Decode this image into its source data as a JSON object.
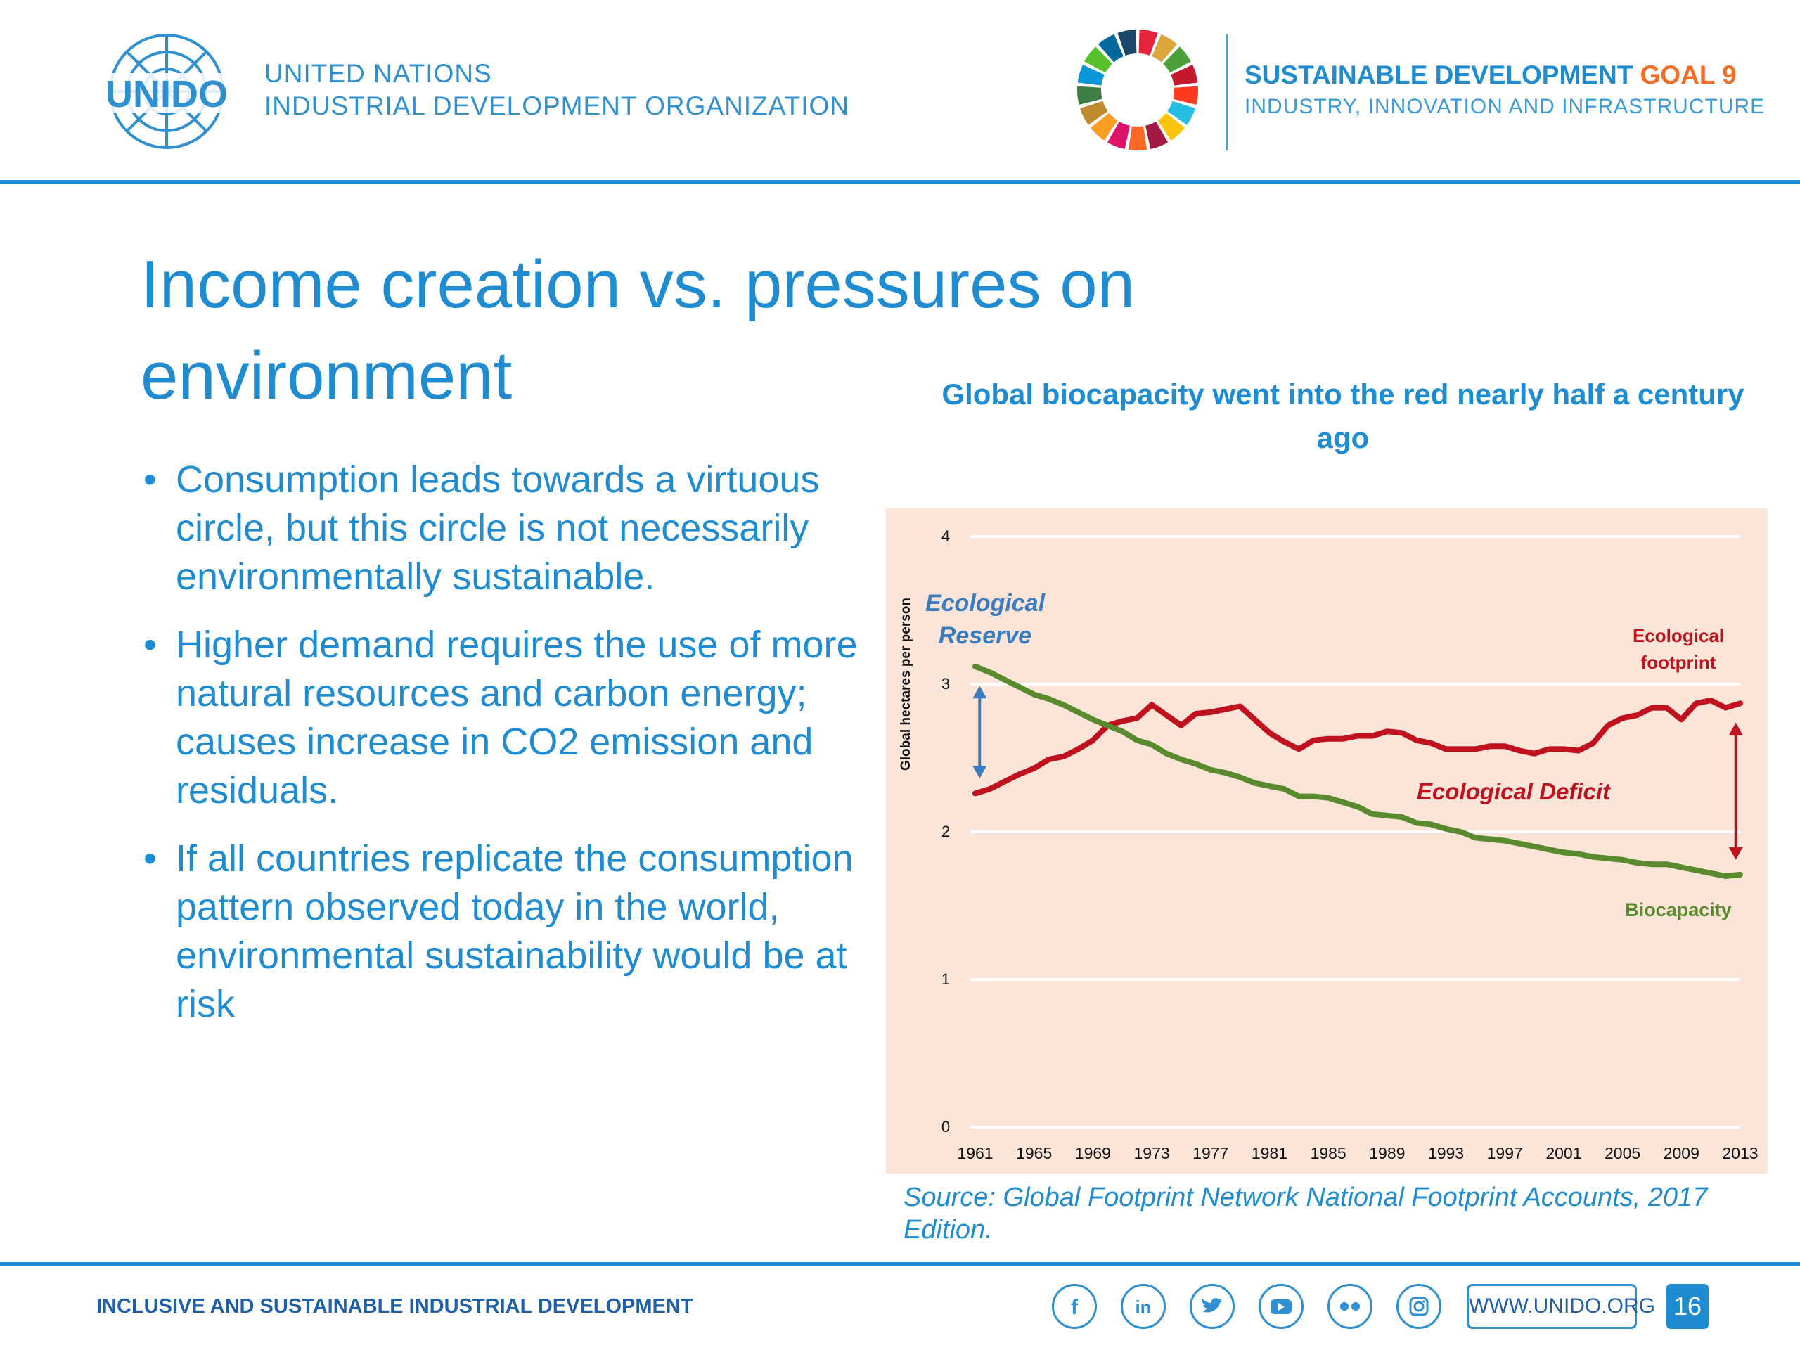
{
  "header": {
    "logo_text": "UNIDO",
    "org_line1": "UNITED NATIONS",
    "org_line2": "INDUSTRIAL DEVELOPMENT ORGANIZATION",
    "sdg_title_main": "SUSTAINABLE DEVELOPMENT ",
    "sdg_title_goal": "GOAL 9",
    "sdg_subtitle": "INDUSTRY, INNOVATION AND INFRASTRUCTURE"
  },
  "slide": {
    "title": "Income creation vs. pressures on environment",
    "bullets": [
      "Consumption leads towards a virtuous circle, but this circle is not necessarily environmentally sustainable.",
      "Higher demand requires the use of more natural resources and carbon energy; causes increase in CO2 emission and residuals.",
      "If all countries replicate the consumption pattern observed today in the world, environmental sustainability would be at risk"
    ],
    "bullet_glyph": "•"
  },
  "chart_title": "Global biocapacity went into the red nearly half a century ago",
  "chart_source": "Source: Global Footprint Network National Footprint Accounts, 2017 Edition.",
  "chart_data": {
    "type": "line",
    "title": "Global biocapacity went into the red nearly half a century ago",
    "xlabel": "",
    "ylabel": "Global hectares per person",
    "xlim": [
      1961,
      2013
    ],
    "ylim": [
      0,
      4
    ],
    "yticks": [
      "0",
      "1",
      "2",
      "3",
      "4"
    ],
    "xticks": [
      "1961",
      "1965",
      "1969",
      "1973",
      "1977",
      "1981",
      "1985",
      "1989",
      "1993",
      "1997",
      "2001",
      "2005",
      "2009",
      "2013"
    ],
    "grid": true,
    "background": "#fbe5d8",
    "x": [
      1961,
      1962,
      1963,
      1964,
      1965,
      1966,
      1967,
      1968,
      1969,
      1970,
      1971,
      1972,
      1973,
      1974,
      1975,
      1976,
      1977,
      1978,
      1979,
      1980,
      1981,
      1982,
      1983,
      1984,
      1985,
      1986,
      1987,
      1988,
      1989,
      1990,
      1991,
      1992,
      1993,
      1994,
      1995,
      1996,
      1997,
      1998,
      1999,
      2000,
      2001,
      2002,
      2003,
      2004,
      2005,
      2006,
      2007,
      2008,
      2009,
      2010,
      2011,
      2012,
      2013
    ],
    "series": [
      {
        "name": "Ecological footprint",
        "color": "#c0111f",
        "values": [
          2.26,
          2.29,
          2.34,
          2.39,
          2.43,
          2.49,
          2.51,
          2.56,
          2.62,
          2.72,
          2.75,
          2.77,
          2.86,
          2.79,
          2.72,
          2.8,
          2.81,
          2.83,
          2.85,
          2.76,
          2.67,
          2.61,
          2.56,
          2.62,
          2.63,
          2.63,
          2.65,
          2.65,
          2.68,
          2.67,
          2.62,
          2.6,
          2.56,
          2.56,
          2.56,
          2.58,
          2.58,
          2.55,
          2.53,
          2.56,
          2.56,
          2.55,
          2.6,
          2.72,
          2.77,
          2.79,
          2.84,
          2.84,
          2.76,
          2.87,
          2.89,
          2.84,
          2.87
        ]
      },
      {
        "name": "Biocapacity",
        "color": "#5a8a2e",
        "values": [
          3.12,
          3.08,
          3.03,
          2.98,
          2.93,
          2.9,
          2.86,
          2.81,
          2.76,
          2.72,
          2.68,
          2.62,
          2.59,
          2.53,
          2.49,
          2.46,
          2.42,
          2.4,
          2.37,
          2.33,
          2.31,
          2.29,
          2.24,
          2.24,
          2.23,
          2.2,
          2.17,
          2.12,
          2.11,
          2.1,
          2.06,
          2.05,
          2.02,
          2.0,
          1.96,
          1.95,
          1.94,
          1.92,
          1.9,
          1.88,
          1.86,
          1.85,
          1.83,
          1.82,
          1.81,
          1.79,
          1.78,
          1.78,
          1.76,
          1.74,
          1.72,
          1.7,
          1.71
        ]
      }
    ],
    "annotations": {
      "reserve_line1": "Ecological",
      "reserve_line2": "Reserve",
      "deficit": "Ecological Deficit",
      "footprint_line1": "Ecological",
      "footprint_line2": "footprint",
      "biocapacity": "Biocapacity"
    },
    "reserve_arrow": {
      "x": 1961,
      "y_from": 2.97,
      "y_to": 2.38,
      "color": "#3b7bbf"
    },
    "deficit_arrow": {
      "x": 2013,
      "y_from": 2.72,
      "y_to": 1.83,
      "color": "#c0111f"
    }
  },
  "footer": {
    "tagline": "INCLUSIVE AND SUSTAINABLE INDUSTRIAL DEVELOPMENT",
    "social": [
      "f",
      "in",
      "🐦",
      "▶",
      "●●",
      "◎"
    ],
    "website": "WWW.UNIDO.ORG",
    "page_number": "16"
  }
}
